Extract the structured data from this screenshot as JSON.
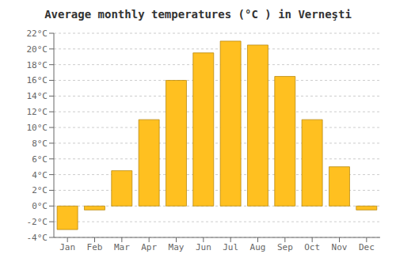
{
  "chart_data": {
    "type": "bar",
    "title": "Average monthly temperatures (°C ) in Verneşti",
    "categories": [
      "Jan",
      "Feb",
      "Mar",
      "Apr",
      "May",
      "Jun",
      "Jul",
      "Aug",
      "Sep",
      "Oct",
      "Nov",
      "Dec"
    ],
    "values": [
      -3.0,
      -0.5,
      4.5,
      11.0,
      16.0,
      19.5,
      21.0,
      20.5,
      16.5,
      11.0,
      5.0,
      -0.5
    ],
    "color": "#FFC020",
    "ylim": [
      -4,
      22
    ],
    "yticks": [
      {
        "value": -4,
        "label": "-4°C"
      },
      {
        "value": -2,
        "label": "-2°C"
      },
      {
        "value": 0,
        "label": "0°C"
      },
      {
        "value": 2,
        "label": "2°C"
      },
      {
        "value": 4,
        "label": "4°C"
      },
      {
        "value": 6,
        "label": "6°C"
      },
      {
        "value": 8,
        "label": "8°C"
      },
      {
        "value": 10,
        "label": "10°C"
      },
      {
        "value": 12,
        "label": "12°C"
      },
      {
        "value": 14,
        "label": "14°C"
      },
      {
        "value": 16,
        "label": "16°C"
      },
      {
        "value": 18,
        "label": "18°C"
      },
      {
        "value": 20,
        "label": "20°C"
      },
      {
        "value": 22,
        "label": "22°C"
      }
    ],
    "grid": true
  }
}
